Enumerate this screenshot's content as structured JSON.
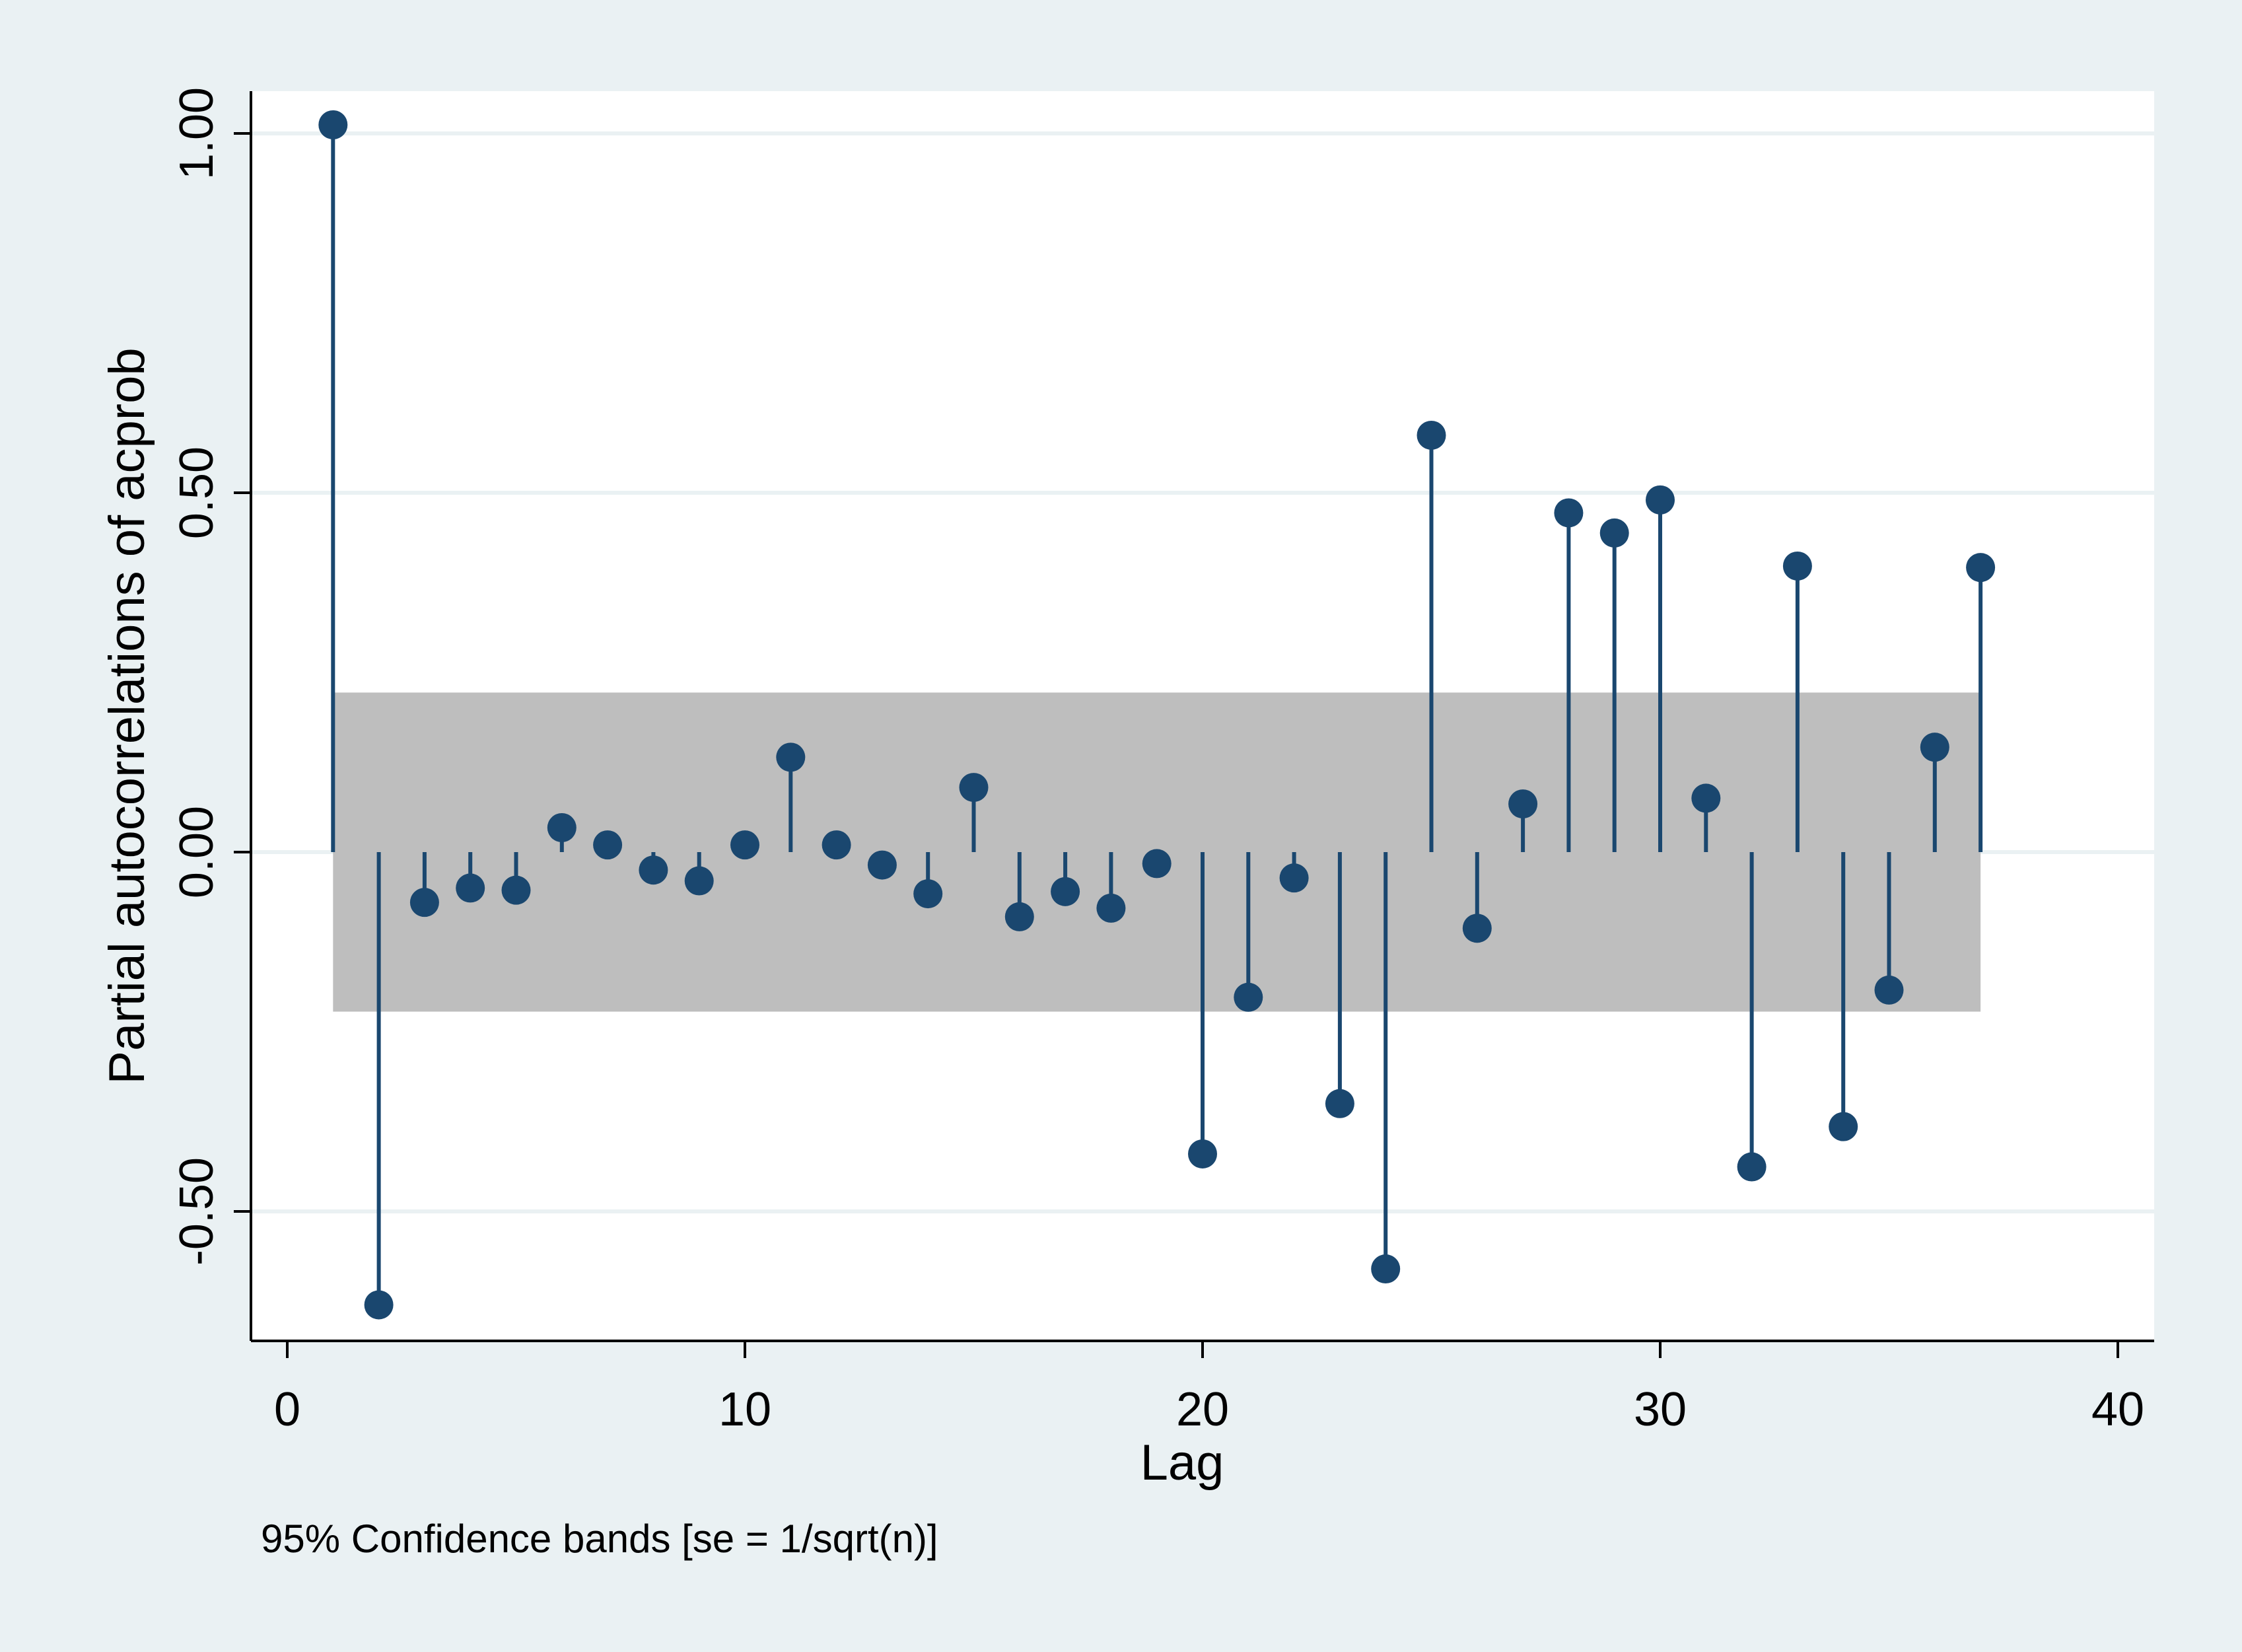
{
  "chart_data": {
    "type": "scatter",
    "title": "",
    "xlabel": "Lag",
    "ylabel": "Partial autocorrelations of acprob",
    "note": "95% Confidence bands [se = 1/sqrt(n)]",
    "xlim": [
      0,
      40
    ],
    "ylim": [
      -0.68,
      1.06
    ],
    "xticks": [
      0,
      10,
      20,
      30,
      40
    ],
    "xtick_labels": [
      "0",
      "10",
      "20",
      "30",
      "40"
    ],
    "yticks": [
      -0.5,
      0,
      0.5,
      1
    ],
    "ytick_labels": [
      "-0.50",
      "0.00",
      "0.50",
      "1.00"
    ],
    "grid": true,
    "confidence_band": 0.222,
    "x": [
      1,
      2,
      3,
      4,
      5,
      6,
      7,
      8,
      9,
      10,
      11,
      12,
      13,
      14,
      15,
      16,
      17,
      18,
      19,
      20,
      21,
      22,
      23,
      24,
      25,
      26,
      27,
      28,
      29,
      30,
      31,
      32,
      33,
      34,
      35,
      36,
      37
    ],
    "values": [
      1.012,
      -0.63,
      -0.07,
      -0.05,
      -0.053,
      0.034,
      0.01,
      -0.025,
      -0.04,
      0.01,
      0.132,
      0.01,
      -0.018,
      -0.058,
      0.09,
      -0.09,
      -0.055,
      -0.078,
      -0.016,
      -0.42,
      -0.202,
      -0.036,
      -0.35,
      -0.58,
      0.58,
      -0.106,
      0.067,
      0.472,
      0.444,
      0.49,
      0.075,
      -0.438,
      0.398,
      -0.382,
      -0.192,
      0.146,
      0.396
    ],
    "colors": {
      "outer_bg": "#eaf1f3",
      "plot_bg": "#ffffff",
      "grid": "#eaf1f3",
      "band": "#bebebe",
      "series": "#1a476f",
      "axis": "#000000"
    }
  }
}
